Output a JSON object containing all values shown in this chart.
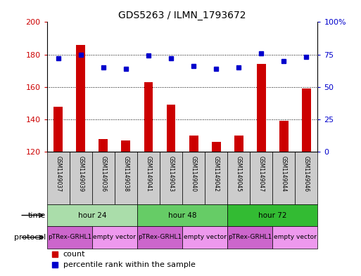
{
  "title": "GDS5263 / ILMN_1793672",
  "samples": [
    "GSM1149037",
    "GSM1149039",
    "GSM1149036",
    "GSM1149038",
    "GSM1149041",
    "GSM1149043",
    "GSM1149040",
    "GSM1149042",
    "GSM1149045",
    "GSM1149047",
    "GSM1149044",
    "GSM1149046"
  ],
  "counts": [
    148,
    186,
    128,
    127,
    163,
    149,
    130,
    126,
    130,
    174,
    139,
    159
  ],
  "percentiles": [
    72,
    75,
    65,
    64,
    74,
    72,
    66,
    64,
    65,
    76,
    70,
    73
  ],
  "ylim_left": [
    120,
    200
  ],
  "ylim_right": [
    0,
    100
  ],
  "yticks_left": [
    120,
    140,
    160,
    180,
    200
  ],
  "yticks_right": [
    0,
    25,
    50,
    75,
    100
  ],
  "ytick_labels_right": [
    "0",
    "25",
    "50",
    "75",
    "100%"
  ],
  "bar_color": "#cc0000",
  "dot_color": "#0000cc",
  "time_groups": [
    {
      "label": "hour 24",
      "start": 0,
      "end": 4,
      "color": "#aaddaa"
    },
    {
      "label": "hour 48",
      "start": 4,
      "end": 8,
      "color": "#66cc66"
    },
    {
      "label": "hour 72",
      "start": 8,
      "end": 12,
      "color": "#33bb33"
    }
  ],
  "protocol_groups": [
    {
      "label": "pTRex-GRHL1",
      "start": 0,
      "end": 2,
      "color": "#cc66cc"
    },
    {
      "label": "empty vector",
      "start": 2,
      "end": 4,
      "color": "#ee99ee"
    },
    {
      "label": "pTRex-GRHL1",
      "start": 4,
      "end": 6,
      "color": "#cc66cc"
    },
    {
      "label": "empty vector",
      "start": 6,
      "end": 8,
      "color": "#ee99ee"
    },
    {
      "label": "pTRex-GRHL1",
      "start": 8,
      "end": 10,
      "color": "#cc66cc"
    },
    {
      "label": "empty vector",
      "start": 10,
      "end": 12,
      "color": "#ee99ee"
    }
  ],
  "time_label": "time",
  "protocol_label": "protocol",
  "legend_count": "count",
  "legend_percentile": "percentile rank within the sample",
  "bar_width": 0.4,
  "sample_box_color": "#cccccc",
  "background_color": "#ffffff"
}
